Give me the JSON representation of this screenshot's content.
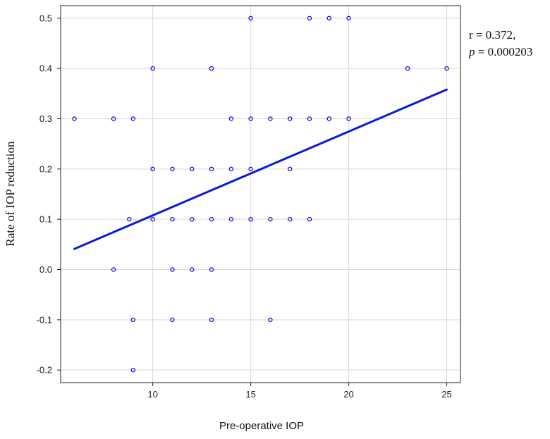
{
  "chart_data": {
    "type": "scatter",
    "title": "",
    "xlabel": "Pre-operative IOP",
    "ylabel": "Rate of IOP reduction",
    "xlim": [
      5.3,
      25.7
    ],
    "ylim": [
      -0.225,
      0.525
    ],
    "xticks": [
      10,
      15,
      20,
      25
    ],
    "yticks": [
      -0.2,
      -0.1,
      0.0,
      0.1,
      0.2,
      0.3,
      0.4,
      0.5
    ],
    "xtick_labels": [
      "10",
      "15",
      "20",
      "25"
    ],
    "ytick_labels": [
      "-0.2",
      "-0.1",
      "0.0",
      "0.1",
      "0.2",
      "0.3",
      "0.4",
      "0.5"
    ],
    "grid": true,
    "point_color": "#0000ee",
    "line_color": "#0a1ad6",
    "points": [
      {
        "x": 15,
        "y": 0.5
      },
      {
        "x": 18,
        "y": 0.5
      },
      {
        "x": 19,
        "y": 0.5
      },
      {
        "x": 20,
        "y": 0.5
      },
      {
        "x": 10,
        "y": 0.4
      },
      {
        "x": 13,
        "y": 0.4
      },
      {
        "x": 23,
        "y": 0.4
      },
      {
        "x": 25,
        "y": 0.4
      },
      {
        "x": 6,
        "y": 0.3
      },
      {
        "x": 8,
        "y": 0.3
      },
      {
        "x": 9,
        "y": 0.3
      },
      {
        "x": 14,
        "y": 0.3
      },
      {
        "x": 15,
        "y": 0.3
      },
      {
        "x": 16,
        "y": 0.3
      },
      {
        "x": 17,
        "y": 0.3
      },
      {
        "x": 18,
        "y": 0.3
      },
      {
        "x": 19,
        "y": 0.3
      },
      {
        "x": 20,
        "y": 0.3
      },
      {
        "x": 10,
        "y": 0.2
      },
      {
        "x": 11,
        "y": 0.2
      },
      {
        "x": 12,
        "y": 0.2
      },
      {
        "x": 13,
        "y": 0.2
      },
      {
        "x": 14,
        "y": 0.2
      },
      {
        "x": 15,
        "y": 0.2
      },
      {
        "x": 17,
        "y": 0.2
      },
      {
        "x": 8.8,
        "y": 0.1
      },
      {
        "x": 10,
        "y": 0.1
      },
      {
        "x": 11,
        "y": 0.1
      },
      {
        "x": 12,
        "y": 0.1
      },
      {
        "x": 13,
        "y": 0.1
      },
      {
        "x": 14,
        "y": 0.1
      },
      {
        "x": 15,
        "y": 0.1
      },
      {
        "x": 16,
        "y": 0.1
      },
      {
        "x": 17,
        "y": 0.1
      },
      {
        "x": 18,
        "y": 0.1
      },
      {
        "x": 8,
        "y": 0.0
      },
      {
        "x": 11,
        "y": 0.0
      },
      {
        "x": 12,
        "y": 0.0
      },
      {
        "x": 13,
        "y": 0.0
      },
      {
        "x": 9,
        "y": -0.1
      },
      {
        "x": 11,
        "y": -0.1
      },
      {
        "x": 13,
        "y": -0.1
      },
      {
        "x": 16,
        "y": -0.1
      },
      {
        "x": 9,
        "y": -0.2
      }
    ],
    "regression_line": {
      "x": [
        6,
        25
      ],
      "y": [
        0.041,
        0.358
      ]
    },
    "annotation": {
      "r_text": "r = 0.372,",
      "p_symbol": "p",
      "p_value": " = 0.000203"
    }
  }
}
